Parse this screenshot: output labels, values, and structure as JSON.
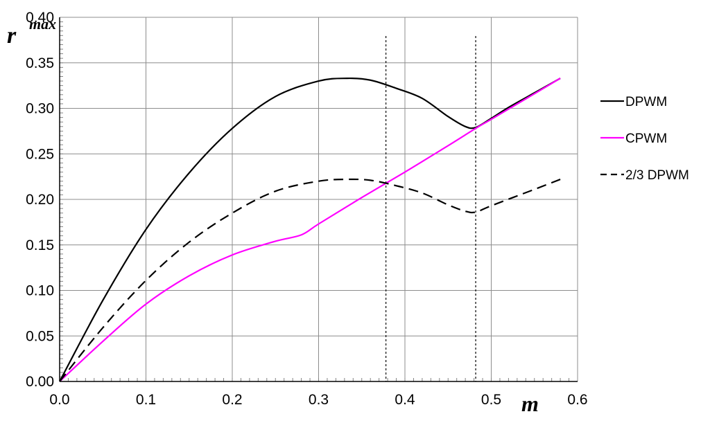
{
  "chart_data": {
    "type": "line",
    "xlabel": "m",
    "ylabel": "r",
    "ylabel_superscript": "max",
    "xlim": [
      0,
      0.6
    ],
    "ylim": [
      0,
      0.4
    ],
    "xticks": [
      "0.0",
      "0.1",
      "0.2",
      "0.3",
      "0.4",
      "0.5",
      "0.6"
    ],
    "yticks": [
      "0.00",
      "0.05",
      "0.10",
      "0.15",
      "0.20",
      "0.25",
      "0.30",
      "0.35",
      "0.40"
    ],
    "grid": true,
    "legend_position": "right",
    "vertical_markers": [
      0.378,
      0.482
    ],
    "series": [
      {
        "name": "DPWM",
        "color": "#000000",
        "dash": "solid",
        "x": [
          0,
          0.05,
          0.1,
          0.15,
          0.2,
          0.25,
          0.3,
          0.333,
          0.36,
          0.39,
          0.42,
          0.45,
          0.47,
          0.482,
          0.5,
          0.52,
          0.55,
          0.58
        ],
        "y": [
          0,
          0.089,
          0.167,
          0.229,
          0.278,
          0.313,
          0.33,
          0.333,
          0.331,
          0.322,
          0.311,
          0.291,
          0.28,
          0.279,
          0.289,
          0.301,
          0.317,
          0.333
        ]
      },
      {
        "name": "CPWM",
        "color": "#ff00ff",
        "dash": "solid",
        "x": [
          0,
          0.05,
          0.1,
          0.15,
          0.2,
          0.25,
          0.28,
          0.3,
          0.35,
          0.4,
          0.45,
          0.482,
          0.5,
          0.55,
          0.58
        ],
        "y": [
          0,
          0.044,
          0.085,
          0.116,
          0.139,
          0.154,
          0.161,
          0.173,
          0.202,
          0.23,
          0.259,
          0.278,
          0.288,
          0.316,
          0.333
        ]
      },
      {
        "name": "2/3 DPWM",
        "color": "#000000",
        "dash": "dashed",
        "x": [
          0,
          0.05,
          0.1,
          0.15,
          0.2,
          0.25,
          0.3,
          0.333,
          0.36,
          0.39,
          0.42,
          0.45,
          0.47,
          0.482,
          0.5,
          0.55,
          0.58
        ],
        "y": [
          0,
          0.059,
          0.111,
          0.153,
          0.185,
          0.209,
          0.22,
          0.222,
          0.221,
          0.215,
          0.207,
          0.194,
          0.187,
          0.186,
          0.193,
          0.211,
          0.222
        ]
      }
    ]
  }
}
